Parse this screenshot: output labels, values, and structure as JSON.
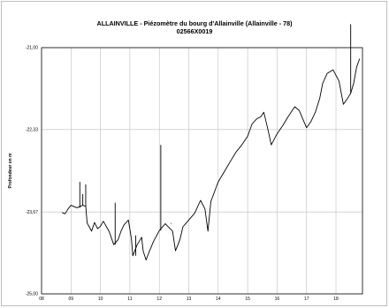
{
  "chart_data": {
    "type": "line",
    "title": "ALLAINVILLE - Piézomètre du bourg d'Allainville (Allainville - 78)",
    "subtitle": "02566X0019",
    "ylabel": "Profondeur en m",
    "xlabel": "",
    "ylim": [
      -25.0,
      -21.0
    ],
    "y_ticks": [
      "-21,00",
      "-22,33",
      "-23,67",
      "-25,00"
    ],
    "x_ticks": [
      "08",
      "09",
      "10",
      "11",
      "12",
      "13",
      "14",
      "15",
      "16",
      "17",
      "18"
    ],
    "grid": true,
    "series": [
      {
        "color": "#000000",
        "x": [
          8.7,
          8.8,
          8.9,
          9.0,
          9.2,
          9.4,
          9.5,
          9.55,
          9.7,
          9.8,
          9.9,
          10.0,
          10.1,
          10.3,
          10.45,
          10.6,
          10.7,
          10.8,
          10.95,
          11.05,
          11.1,
          11.25,
          11.4,
          11.45,
          11.55,
          11.65,
          11.8,
          12.0,
          12.2,
          12.45,
          12.55,
          12.7,
          12.8,
          13.0,
          13.2,
          13.4,
          13.55,
          13.65,
          13.75,
          14.0,
          14.2,
          14.4,
          14.6,
          14.8,
          15.0,
          15.15,
          15.3,
          15.45,
          15.55,
          15.7,
          15.8,
          16.0,
          16.2,
          16.35,
          16.5,
          16.6,
          16.75,
          17.0,
          17.15,
          17.3,
          17.45,
          17.55,
          17.7,
          17.9,
          18.1,
          18.25,
          18.4,
          18.5,
          18.6,
          18.7,
          18.8
        ],
        "y": [
          -23.68,
          -23.7,
          -23.62,
          -23.56,
          -23.6,
          -23.56,
          -23.58,
          -23.85,
          -23.98,
          -23.84,
          -23.94,
          -23.9,
          -23.82,
          -23.99,
          -24.2,
          -24.12,
          -23.98,
          -23.88,
          -23.8,
          -24.1,
          -24.38,
          -24.2,
          -24.08,
          -24.3,
          -24.45,
          -24.32,
          -24.15,
          -23.97,
          -23.86,
          -23.98,
          -24.3,
          -24.12,
          -23.91,
          -23.8,
          -23.69,
          -23.48,
          -23.62,
          -23.98,
          -23.5,
          -23.18,
          -23.02,
          -22.86,
          -22.7,
          -22.58,
          -22.44,
          -22.24,
          -22.16,
          -22.12,
          -22.05,
          -22.35,
          -22.58,
          -22.4,
          -22.26,
          -22.14,
          -22.03,
          -21.96,
          -22.02,
          -22.3,
          -22.2,
          -22.05,
          -21.82,
          -21.58,
          -21.42,
          -21.36,
          -21.54,
          -21.92,
          -21.82,
          -21.74,
          -21.58,
          -21.32,
          -21.18
        ],
        "spikes": [
          {
            "x": 9.3,
            "y": -23.18
          },
          {
            "x": 9.4,
            "y": -23.38
          },
          {
            "x": 9.5,
            "y": -23.22
          },
          {
            "x": 10.5,
            "y": -23.52
          },
          {
            "x": 11.2,
            "y": -24.05
          },
          {
            "x": 12.05,
            "y": -22.58
          },
          {
            "x": 12.4,
            "y": -23.85
          },
          {
            "x": 18.5,
            "y": -20.62
          }
        ]
      }
    ]
  }
}
